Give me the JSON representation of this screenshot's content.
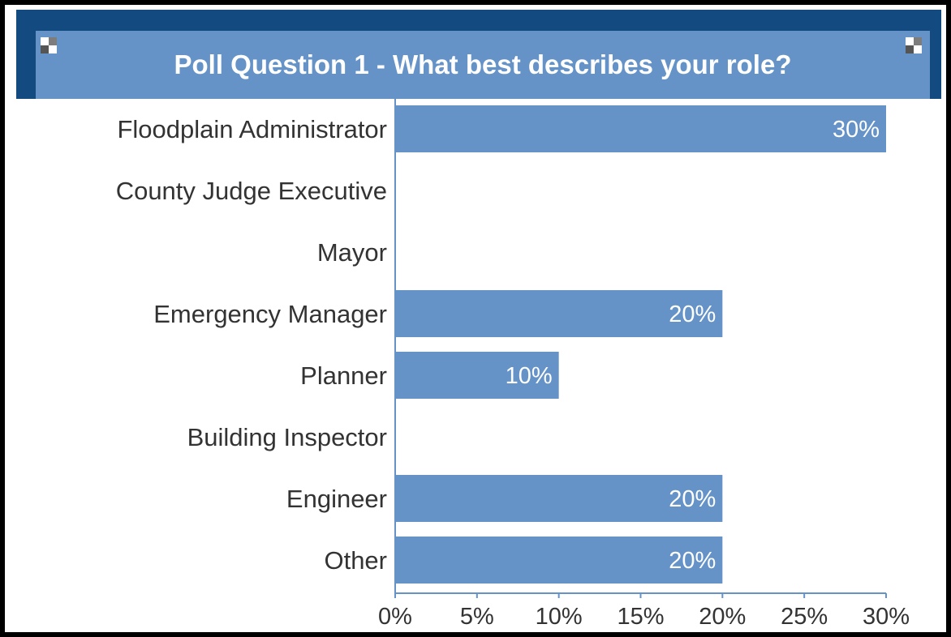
{
  "title": "Poll Question 1 - What best describes your role?",
  "colors": {
    "bar": "#6593c8",
    "title_bar": "#6593c8",
    "navy": "#134a7f",
    "axis": "#6593c8",
    "text": "#333333"
  },
  "chart_data": {
    "type": "bar",
    "orientation": "horizontal",
    "title": "Poll Question 1 - What best describes your role?",
    "categories": [
      "Floodplain Administrator",
      "County Judge Executive",
      "Mayor",
      "Emergency Manager",
      "Planner",
      "Building Inspector",
      "Engineer",
      "Other"
    ],
    "values": [
      30,
      0,
      0,
      20,
      10,
      0,
      20,
      20
    ],
    "data_labels": [
      "30%",
      "",
      "",
      "20%",
      "10%",
      "",
      "20%",
      "20%"
    ],
    "xlim": [
      0,
      30
    ],
    "xticks": [
      0,
      5,
      10,
      15,
      20,
      25,
      30
    ],
    "xtick_labels": [
      "0%",
      "5%",
      "10%",
      "15%",
      "20%",
      "25%",
      "30%"
    ],
    "grid": false,
    "legend": "none"
  }
}
